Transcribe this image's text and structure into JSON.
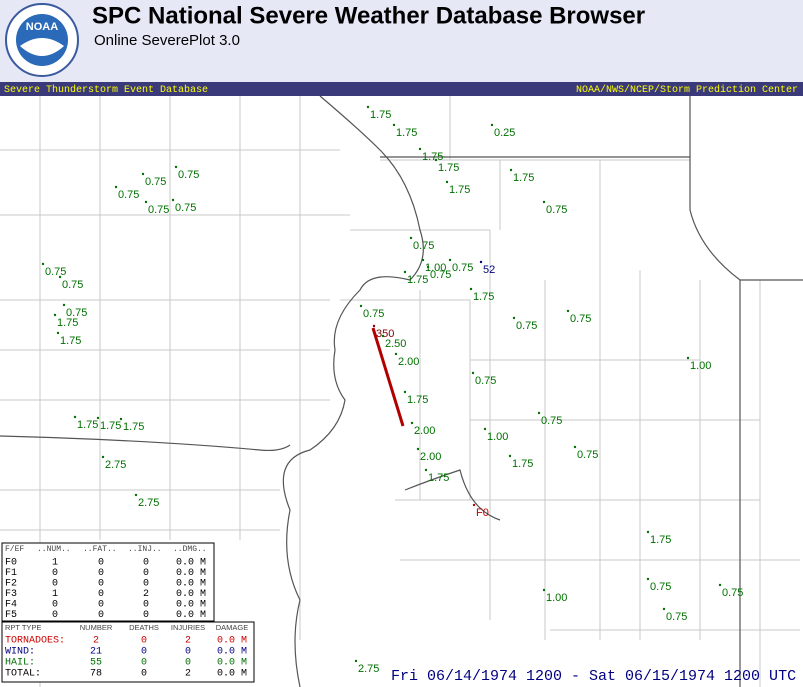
{
  "header": {
    "title": "SPC National Severe Weather Database Browser",
    "subtitle": "Online SeverePlot 3.0",
    "logo": "NOAA"
  },
  "bar": {
    "left": "Severe Thunderstorm Event Database",
    "right": "NOAA/NWS/NCEP/Storm Prediction Center"
  },
  "map": {
    "labels": [
      {
        "text": "1.75",
        "color": "#007000"
      },
      {
        "text": "1.75",
        "color": "#007000"
      },
      {
        "text": "0.25",
        "color": "#007000"
      },
      {
        "text": "1.75",
        "color": "#007000"
      },
      {
        "text": "1.75",
        "color": "#007000"
      },
      {
        "text": "1.75",
        "color": "#007000"
      },
      {
        "text": "0.75",
        "color": "#007000"
      },
      {
        "text": "0.75",
        "color": "#007000"
      },
      {
        "text": "0.75",
        "color": "#007000"
      },
      {
        "text": "0.75",
        "color": "#007000"
      },
      {
        "text": "0.75",
        "color": "#007000"
      },
      {
        "text": "1.75",
        "color": "#007000"
      },
      {
        "text": "0.75",
        "color": "#007000"
      },
      {
        "text": "0.75",
        "color": "#007000"
      },
      {
        "text": "0.75",
        "color": "#007000"
      },
      {
        "text": "0.75",
        "color": "#007000"
      },
      {
        "text": "1.00",
        "color": "#007000"
      },
      {
        "text": "0.75",
        "color": "#007000"
      },
      {
        "text": "52",
        "color": "#000080"
      },
      {
        "text": "1.75",
        "color": "#007000"
      },
      {
        "text": "0.75",
        "color": "#007000"
      },
      {
        "text": "1.75",
        "color": "#007000"
      },
      {
        "text": "0.75",
        "color": "#007000"
      },
      {
        "text": "1.75",
        "color": "#007000"
      },
      {
        "text": "1.75",
        "color": "#007000"
      },
      {
        "text": "0.75",
        "color": "#007000"
      },
      {
        "text": "0.75",
        "color": "#007000"
      },
      {
        "text": "0.75",
        "color": "#007000"
      },
      {
        "text": "350",
        "color": "#800000"
      },
      {
        "text": "2.50",
        "color": "#007000"
      },
      {
        "text": "2.00",
        "color": "#007000"
      },
      {
        "text": "1.00",
        "color": "#007000"
      },
      {
        "text": "0.75",
        "color": "#007000"
      },
      {
        "text": "1.75",
        "color": "#007000"
      },
      {
        "text": "1.75",
        "color": "#007000"
      },
      {
        "text": "1.75",
        "color": "#007000"
      },
      {
        "text": "1.75",
        "color": "#007000"
      },
      {
        "text": "0.75",
        "color": "#007000"
      },
      {
        "text": "2.00",
        "color": "#007000"
      },
      {
        "text": "1.00",
        "color": "#007000"
      },
      {
        "text": "0.75",
        "color": "#007000"
      },
      {
        "text": "2.00",
        "color": "#007000"
      },
      {
        "text": "1.75",
        "color": "#007000"
      },
      {
        "text": "2.75",
        "color": "#007000"
      },
      {
        "text": "1.75",
        "color": "#007000"
      },
      {
        "text": "2.75",
        "color": "#007000"
      },
      {
        "text": "F0",
        "color": "#cc0000"
      },
      {
        "text": "1.75",
        "color": "#007000"
      },
      {
        "text": "0.75",
        "color": "#007000"
      },
      {
        "text": "1.00",
        "color": "#007000"
      },
      {
        "text": "0.75",
        "color": "#007000"
      },
      {
        "text": "0.75",
        "color": "#007000"
      },
      {
        "text": "2.75",
        "color": "#007000"
      }
    ]
  },
  "fscale_table": {
    "header": [
      "F/EF",
      "..NUM..",
      "..FAT..",
      "..INJ..",
      "..DMG.."
    ],
    "rows": [
      [
        "F0",
        "1",
        "0",
        "0",
        "0.0 M"
      ],
      [
        "F1",
        "0",
        "0",
        "0",
        "0.0 M"
      ],
      [
        "F2",
        "0",
        "0",
        "0",
        "0.0 M"
      ],
      [
        "F3",
        "1",
        "0",
        "2",
        "0.0 M"
      ],
      [
        "F4",
        "0",
        "0",
        "0",
        "0.0 M"
      ],
      [
        "F5",
        "0",
        "0",
        "0",
        "0.0 M"
      ]
    ]
  },
  "summary_table": {
    "header": [
      "RPT TYPE",
      "NUMBER",
      "DEATHS",
      "INJURIES",
      "DAMAGE"
    ],
    "rows": [
      {
        "cells": [
          "TORNADOES:",
          "2",
          "0",
          "2",
          "0.0 M"
        ],
        "color": "#cc0000"
      },
      {
        "cells": [
          "WIND:",
          "21",
          "0",
          "0",
          "0.0 M"
        ],
        "color": "#000080"
      },
      {
        "cells": [
          "HAIL:",
          "55",
          "0",
          "0",
          "0.0 M"
        ],
        "color": "#007000"
      },
      {
        "cells": [
          "TOTAL:",
          "78",
          "0",
          "2",
          "0.0 M"
        ],
        "color": "#000000"
      }
    ]
  },
  "footer": "Fri 06/14/1974 1200 - Sat 06/15/1974 1200 UTC"
}
